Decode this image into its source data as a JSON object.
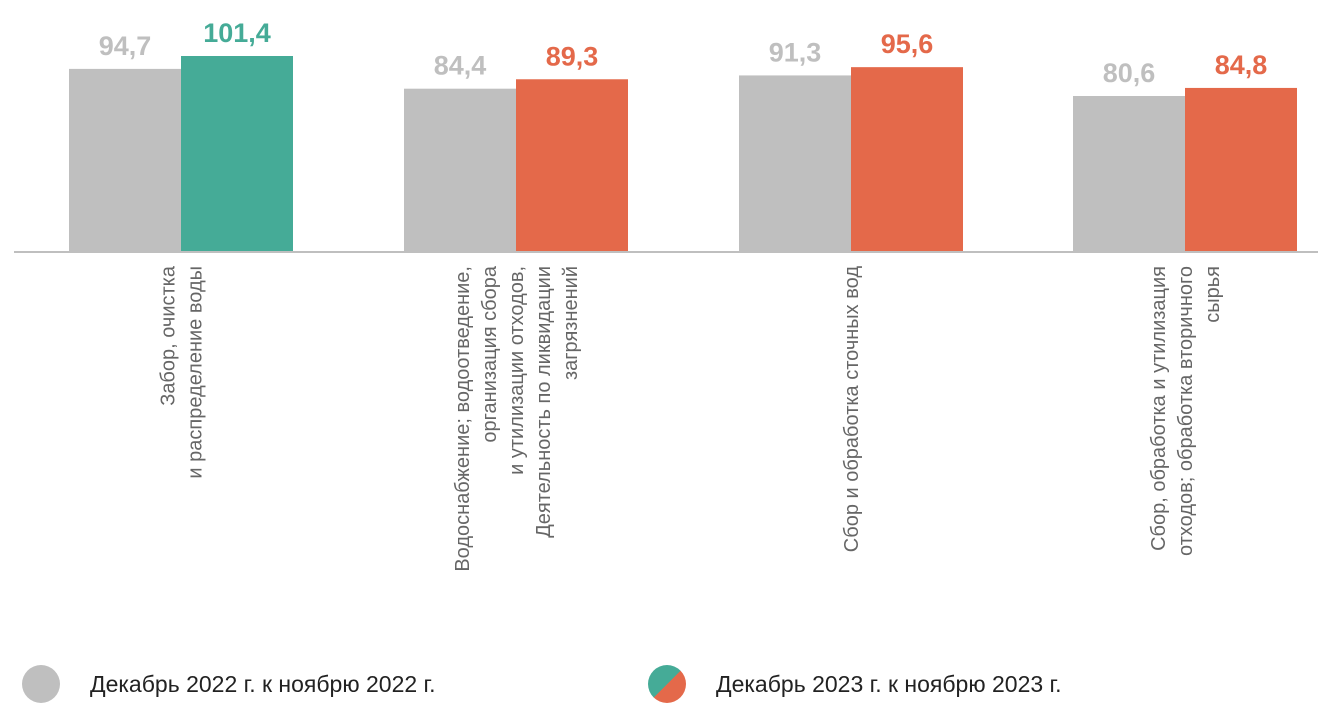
{
  "chart_data": {
    "type": "bar",
    "categories": [
      [
        "Забор, очистка",
        "и распределение воды"
      ],
      [
        "Водоснабжение; водоотведение,",
        "организация сбора",
        "и утилизации отходов,",
        "Деятельность по ликвидации",
        "загрязнений"
      ],
      [
        "Сбор и обработка сточных вод"
      ],
      [
        "Сбор, обработка и утилизация",
        "отходов; обработка вторичного",
        "сырья"
      ]
    ],
    "series": [
      {
        "name": "Декабрь 2022 г. к ноябрю 2022 г.",
        "values": [
          94.7,
          84.4,
          91.3,
          80.6
        ],
        "labels": [
          "94,7",
          "84,4",
          "91,3",
          "80,6"
        ],
        "color": "#bfbfbf",
        "label_color": "#bfbfbf"
      },
      {
        "name": "Декабрь 2023 г. к ноябрю 2023 г.",
        "values": [
          101.4,
          89.3,
          95.6,
          84.8
        ],
        "labels": [
          "101,4",
          "89,3",
          "95,6",
          "84,8"
        ],
        "colors": [
          "#45ab97",
          "#e4694a",
          "#e4694a",
          "#e4694a"
        ],
        "label_colors": [
          "#45ab97",
          "#e4694a",
          "#e4694a",
          "#e4694a"
        ]
      }
    ],
    "ylim": [
      0,
      101.4
    ],
    "axis_color": "#bfbfbf",
    "category_label_color": "#666666",
    "legend_position": "bottom",
    "grid": false
  },
  "legend": {
    "items": [
      {
        "label": "Декабрь 2022 г. к ноябрю 2022 г.",
        "colors": [
          "#bfbfbf"
        ]
      },
      {
        "label": "Декабрь 2023 г. к ноябрю 2023 г.",
        "colors": [
          "#45ab97",
          "#e4694a"
        ]
      }
    ]
  }
}
